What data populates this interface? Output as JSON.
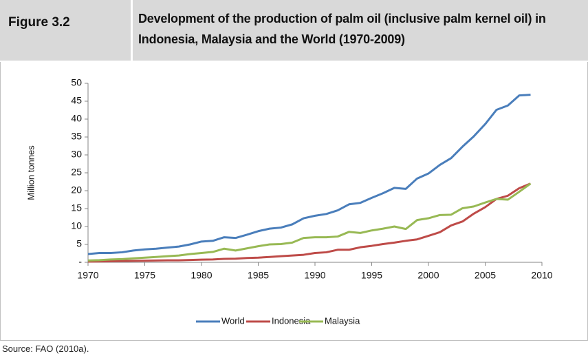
{
  "figure_label": "Figure 3.2",
  "source": "Source: FAO (2010a).",
  "chart_data": {
    "type": "line",
    "title": "Development of the production of palm oil (inclusive palm kernel oil) in Indonesia, Malaysia and the World (1970-2009)",
    "y_label": "Million tonnes",
    "x": [
      1970,
      1971,
      1972,
      1973,
      1974,
      1975,
      1976,
      1977,
      1978,
      1979,
      1980,
      1981,
      1982,
      1983,
      1984,
      1985,
      1986,
      1987,
      1988,
      1989,
      1990,
      1991,
      1992,
      1993,
      1994,
      1995,
      1996,
      1997,
      1998,
      1999,
      2000,
      2001,
      2002,
      2003,
      2004,
      2005,
      2006,
      2007,
      2008,
      2009
    ],
    "series": [
      {
        "name": "World",
        "color": "#4a7ebb",
        "values": [
          2.3,
          2.6,
          2.6,
          2.8,
          3.3,
          3.6,
          3.8,
          4.1,
          4.4,
          5.0,
          5.8,
          6.0,
          7.0,
          6.8,
          7.7,
          8.7,
          9.4,
          9.7,
          10.6,
          12.3,
          13.0,
          13.5,
          14.5,
          16.2,
          16.6,
          18.0,
          19.3,
          20.8,
          20.5,
          23.4,
          24.8,
          27.2,
          29.1,
          32.3,
          35.2,
          38.6,
          42.6,
          43.8,
          46.6,
          46.8
        ]
      },
      {
        "name": "Indonesia",
        "color": "#be4b48",
        "values": [
          0.2,
          0.25,
          0.3,
          0.35,
          0.4,
          0.45,
          0.5,
          0.55,
          0.55,
          0.65,
          0.75,
          0.8,
          0.95,
          1.0,
          1.2,
          1.3,
          1.5,
          1.7,
          1.9,
          2.1,
          2.6,
          2.8,
          3.5,
          3.5,
          4.2,
          4.6,
          5.1,
          5.5,
          6.0,
          6.4,
          7.4,
          8.4,
          10.3,
          11.4,
          13.6,
          15.4,
          17.7,
          18.6,
          20.7,
          22.0
        ]
      },
      {
        "name": "Malaysia",
        "color": "#98b954",
        "values": [
          0.5,
          0.6,
          0.8,
          0.9,
          1.1,
          1.3,
          1.5,
          1.7,
          1.9,
          2.3,
          2.6,
          2.9,
          3.8,
          3.3,
          3.9,
          4.5,
          5.0,
          5.1,
          5.5,
          6.8,
          7.0,
          7.0,
          7.2,
          8.5,
          8.2,
          8.9,
          9.4,
          10.0,
          9.3,
          11.8,
          12.3,
          13.2,
          13.3,
          15.1,
          15.6,
          16.7,
          17.7,
          17.5,
          19.7,
          22.0
        ]
      }
    ],
    "xlim": [
      1970,
      2010
    ],
    "xticks": [
      1970,
      1975,
      1980,
      1985,
      1990,
      1995,
      2000,
      2005,
      2010
    ],
    "ylim": [
      0,
      50
    ],
    "yticks": [
      {
        "value": 0,
        "label": "-"
      },
      5,
      10,
      15,
      20,
      25,
      30,
      35,
      40,
      45,
      50
    ],
    "grid": false,
    "legend": "bottom"
  }
}
